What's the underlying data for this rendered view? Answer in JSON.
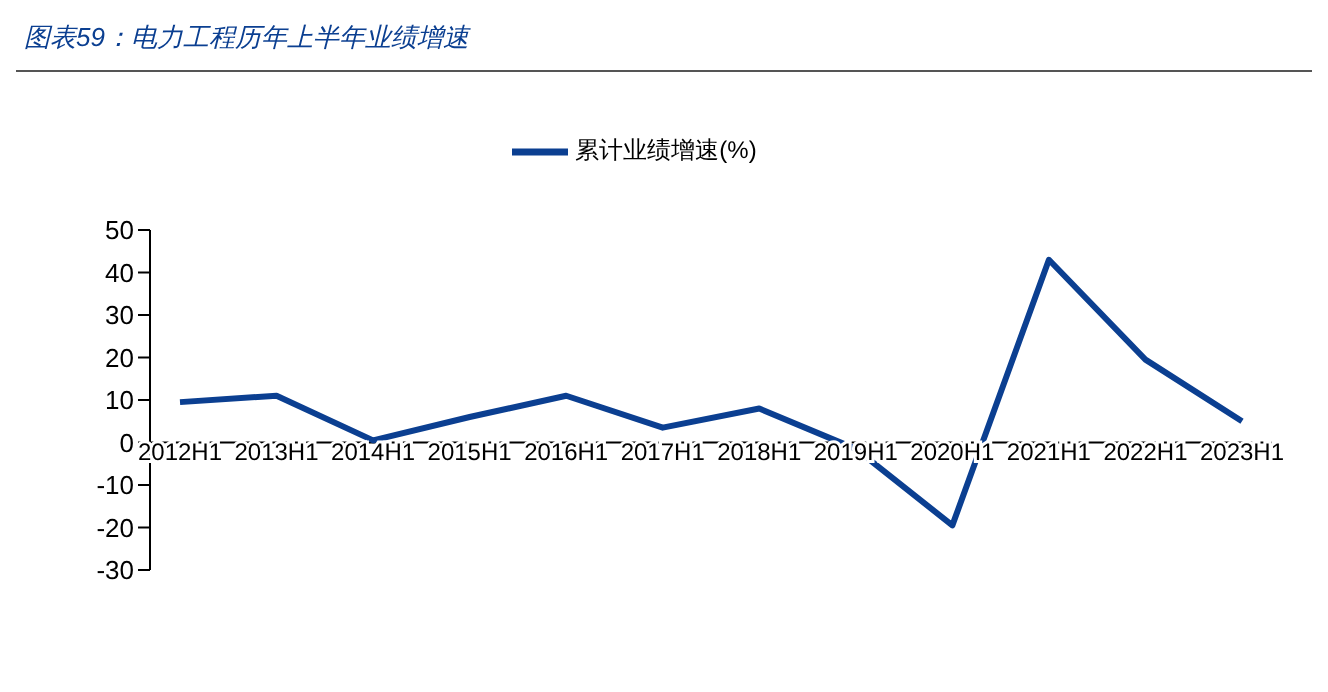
{
  "chart_data": {
    "type": "line",
    "title": "图表59：电力工程历年上半年业绩增速",
    "categories": [
      "2012H1",
      "2013H1",
      "2014H1",
      "2015H1",
      "2016H1",
      "2017H1",
      "2018H1",
      "2019H1",
      "2020H1",
      "2021H1",
      "2022H1",
      "2023H1"
    ],
    "series": [
      {
        "name": "累计业绩增速(%)",
        "color": "#0b3f91",
        "values": [
          9.5,
          11,
          0.5,
          6,
          11,
          3.5,
          8,
          -1.5,
          -19.5,
          43,
          19.5,
          5
        ]
      }
    ],
    "ylim": [
      -30,
      50
    ],
    "yticks": [
      -30,
      -20,
      -10,
      0,
      10,
      20,
      30,
      40,
      50
    ],
    "legend": "top",
    "marker": "none",
    "line_style": "solid"
  }
}
